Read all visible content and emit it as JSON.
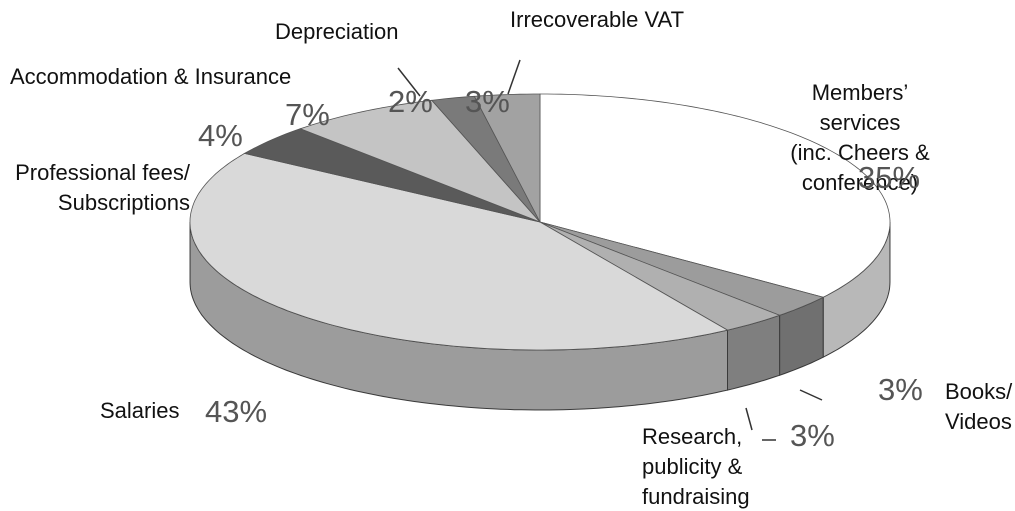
{
  "chart_data": {
    "type": "pie3d",
    "categories": [
      "Members’ services\n(inc. Cheers & conference)",
      "Books/\nVideos",
      "Research,\npublicity &\nfundraising",
      "Salaries",
      "Professional fees/\nSubscriptions",
      "Accommodation & Insurance",
      "Depreciation",
      "Irrecoverable VAT"
    ],
    "values": [
      35,
      3,
      3,
      43,
      4,
      7,
      2,
      3
    ],
    "value_labels": [
      "35%",
      "3%",
      "3%",
      "43%",
      "4%",
      "7%",
      "2%",
      "3%"
    ],
    "colors": [
      "#ffffff",
      "#9c9c9c",
      "#b0b0b0",
      "#d9d9d9",
      "#5a5a5a",
      "#c4c4c4",
      "#7a7a7a",
      "#a2a2a2"
    ]
  }
}
